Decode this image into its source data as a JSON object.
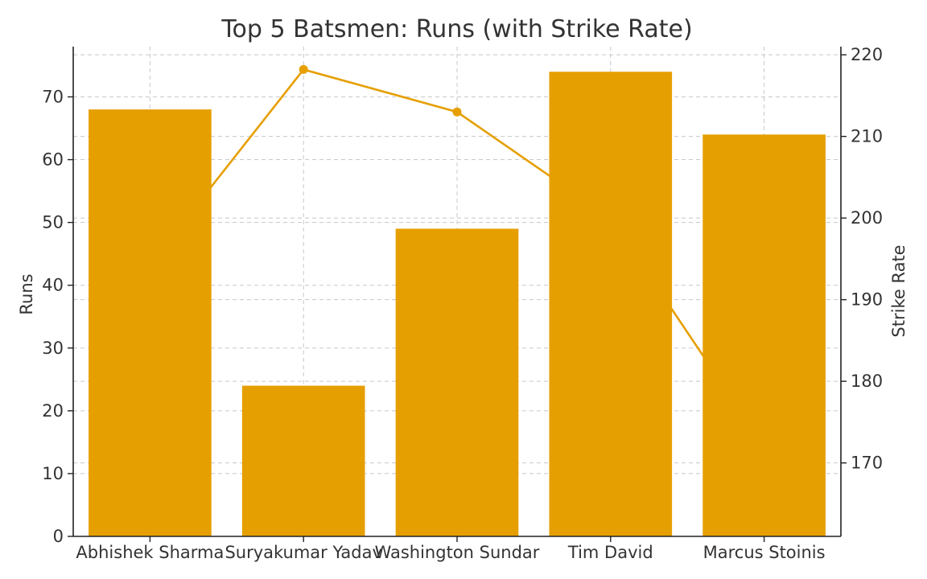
{
  "chart_data": {
    "type": "bar",
    "title": "Top 5 Batsmen: Runs (with Strike Rate)",
    "categories": [
      "Abhishek Sharma",
      "Suryakumar Yadav",
      "Washington Sundar",
      "Tim David",
      "Marcus Stoinis"
    ],
    "ylabel": "Runs",
    "y2label": "Strike Rate",
    "ylim": [
      0,
      78
    ],
    "y2lim": [
      161,
      221
    ],
    "yticks": [
      0,
      10,
      20,
      30,
      40,
      50,
      60,
      70
    ],
    "y2ticks": [
      170,
      180,
      190,
      200,
      210,
      220
    ],
    "grid": true,
    "series": [
      {
        "name": "Runs",
        "type": "bar",
        "axis": "left",
        "color": "#E69F00",
        "values": [
          68,
          24,
          49,
          74,
          64
        ]
      },
      {
        "name": "Strike Rate",
        "type": "line",
        "axis": "right",
        "color": "#E69F00",
        "values": [
          194.3,
          218.2,
          213.0,
          200.0,
          172.0
        ]
      }
    ]
  }
}
